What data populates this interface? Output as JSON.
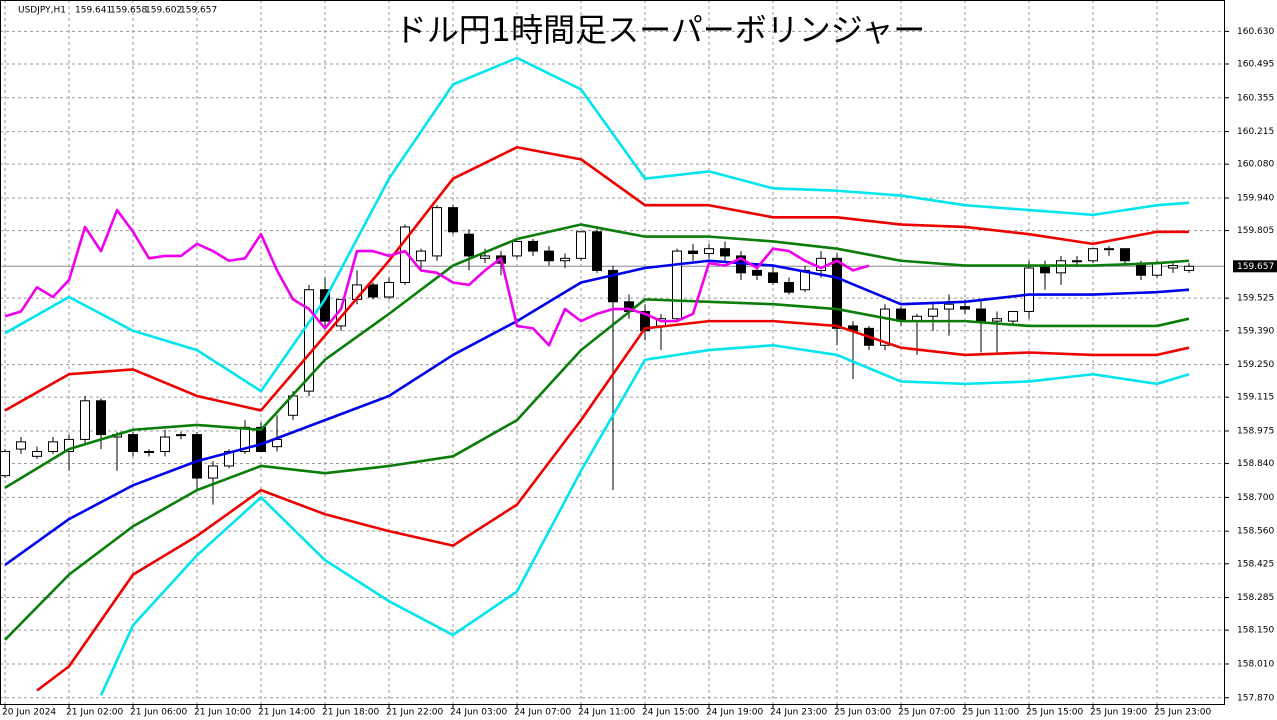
{
  "chart_data": {
    "type": "candlestick",
    "title": "ドル円1時間足スーパーボリンジャー",
    "symbol": "USDJPY,H1",
    "ohlc": [
      159.641,
      159.658,
      159.602,
      159.657
    ],
    "current_price": 159.657,
    "categories": [
      "20 Jun 2024",
      null,
      null,
      null,
      "21 Jun 02:00",
      null,
      null,
      null,
      "21 Jun 06:00",
      null,
      null,
      null,
      "21 Jun 10:00",
      null,
      null,
      null,
      "21 Jun 14:00",
      null,
      null,
      null,
      "21 Jun 18:00",
      null,
      null,
      null,
      "21 Jun 22:00",
      null,
      null,
      null,
      "24 Jun 03:00",
      null,
      null,
      null,
      "24 Jun 07:00",
      null,
      null,
      null,
      "24 Jun 11:00",
      null,
      null,
      null,
      "24 Jun 15:00",
      null,
      null,
      null,
      "24 Jun 19:00",
      null,
      null,
      null,
      "24 Jun 23:00",
      null,
      null,
      null,
      "25 Jun 03:00",
      null,
      null,
      null,
      "25 Jun 07:00",
      null,
      null,
      null,
      "25 Jun 11:00",
      null,
      null,
      null,
      "25 Jun 15:00",
      null,
      null,
      null,
      "25 Jun 19:00",
      null,
      null,
      null,
      "25 Jun 23:00",
      null,
      null
    ],
    "candles": {
      "open": [
        158.79,
        158.9,
        158.87,
        158.89,
        158.89,
        158.94,
        159.1,
        158.95,
        158.96,
        158.89,
        158.89,
        158.96,
        158.96,
        158.78,
        158.83,
        158.89,
        158.99,
        158.91,
        159.04,
        159.14,
        159.56,
        159.41,
        159.52,
        159.58,
        159.53,
        159.59,
        159.68,
        159.7,
        159.9,
        159.79,
        159.69,
        159.7,
        159.7,
        159.76,
        159.72,
        159.68,
        159.69,
        159.8,
        159.64,
        159.51,
        159.47,
        159.41,
        159.44,
        159.72,
        159.71,
        159.73,
        159.7,
        159.64,
        159.63,
        159.59,
        159.56,
        159.64,
        159.69,
        159.41,
        159.4,
        159.33,
        159.48,
        159.43,
        159.45,
        159.48,
        159.49,
        159.48,
        159.43,
        159.43,
        159.47,
        159.66,
        159.63,
        159.68,
        159.68,
        159.73,
        159.73,
        159.67,
        159.62,
        159.65,
        159.64
      ],
      "high": [
        158.9,
        158.95,
        158.91,
        158.95,
        158.96,
        159.12,
        159.11,
        158.97,
        158.97,
        158.9,
        158.98,
        158.97,
        158.97,
        158.85,
        158.9,
        159.02,
        159.01,
        159.04,
        159.14,
        159.58,
        159.61,
        159.52,
        159.64,
        159.59,
        159.61,
        159.83,
        159.73,
        159.91,
        159.91,
        159.81,
        159.73,
        159.72,
        159.76,
        159.77,
        159.74,
        159.71,
        159.8,
        159.81,
        159.66,
        159.54,
        159.5,
        159.46,
        159.73,
        159.75,
        159.75,
        159.76,
        159.72,
        159.67,
        159.66,
        159.61,
        159.66,
        159.72,
        159.71,
        159.43,
        159.41,
        159.5,
        159.49,
        159.46,
        159.51,
        159.54,
        159.52,
        159.52,
        159.47,
        159.47,
        159.68,
        159.68,
        159.7,
        159.7,
        159.73,
        159.74,
        159.73,
        159.68,
        159.68,
        159.67,
        159.67
      ],
      "low": [
        158.78,
        158.88,
        158.86,
        158.88,
        158.81,
        158.92,
        158.9,
        158.81,
        158.87,
        158.87,
        158.87,
        158.94,
        158.73,
        158.67,
        158.82,
        158.88,
        158.89,
        158.89,
        159.02,
        159.12,
        159.4,
        159.39,
        159.5,
        159.52,
        159.52,
        159.58,
        159.64,
        159.68,
        159.79,
        159.64,
        159.67,
        159.62,
        159.69,
        159.7,
        159.66,
        159.65,
        159.68,
        159.63,
        158.73,
        159.44,
        159.35,
        159.31,
        159.43,
        159.68,
        159.69,
        159.68,
        159.6,
        159.6,
        159.58,
        159.54,
        159.55,
        159.61,
        159.33,
        159.19,
        159.31,
        159.31,
        159.41,
        159.29,
        159.39,
        159.37,
        159.46,
        159.3,
        159.29,
        159.41,
        159.44,
        159.56,
        159.58,
        159.66,
        159.67,
        159.7,
        159.66,
        159.6,
        159.61,
        159.63,
        159.63
      ],
      "close": [
        158.89,
        158.93,
        158.89,
        158.93,
        158.94,
        159.1,
        158.96,
        158.96,
        158.89,
        158.89,
        158.95,
        158.96,
        158.78,
        158.83,
        158.89,
        158.99,
        158.89,
        158.94,
        159.12,
        159.56,
        159.43,
        159.52,
        159.58,
        159.53,
        159.59,
        159.82,
        159.72,
        159.9,
        159.8,
        159.7,
        159.7,
        159.67,
        159.76,
        159.72,
        159.68,
        159.69,
        159.8,
        159.64,
        159.51,
        159.47,
        159.39,
        159.44,
        159.72,
        159.71,
        159.73,
        159.7,
        159.63,
        159.62,
        159.59,
        159.55,
        159.64,
        159.69,
        159.4,
        159.39,
        159.33,
        159.48,
        159.43,
        159.45,
        159.48,
        159.5,
        159.48,
        159.43,
        159.44,
        159.47,
        159.65,
        159.63,
        159.68,
        159.68,
        159.73,
        159.73,
        159.68,
        159.62,
        159.67,
        159.66,
        159.657
      ]
    },
    "series": [
      {
        "color": "#00e5ee",
        "x": [
          0,
          4,
          8,
          12,
          16,
          20,
          24,
          28,
          32,
          36,
          40,
          44,
          48,
          52,
          56,
          60,
          64,
          68,
          72,
          74
        ],
        "values": [
          159.38,
          159.53,
          159.39,
          159.31,
          159.14,
          159.52,
          160.02,
          160.41,
          160.52,
          160.39,
          160.02,
          160.05,
          159.98,
          159.97,
          159.95,
          159.91,
          159.89,
          159.87,
          159.91,
          159.92
        ]
      },
      {
        "color": "#00e5ee",
        "x": [
          6,
          8,
          12,
          16,
          20,
          24,
          28,
          32,
          36,
          40,
          44,
          48,
          52,
          56,
          60,
          64,
          68,
          72,
          74
        ],
        "values": [
          157.88,
          158.17,
          158.46,
          158.7,
          158.44,
          158.27,
          158.13,
          158.31,
          158.81,
          159.27,
          159.31,
          159.33,
          159.29,
          159.18,
          159.17,
          159.18,
          159.21,
          159.17,
          159.21
        ]
      },
      {
        "color": "#ee0000",
        "x": [
          0,
          4,
          8,
          12,
          16,
          20,
          24,
          28,
          32,
          36,
          40,
          44,
          48,
          52,
          56,
          60,
          64,
          68,
          72,
          74
        ],
        "values": [
          159.06,
          159.21,
          159.23,
          159.12,
          159.06,
          159.37,
          159.68,
          160.02,
          160.15,
          160.1,
          159.91,
          159.91,
          159.86,
          159.86,
          159.83,
          159.82,
          159.79,
          159.75,
          159.8,
          159.8
        ]
      },
      {
        "color": "#ee0000",
        "x": [
          2,
          4,
          8,
          12,
          16,
          20,
          24,
          28,
          32,
          36,
          40,
          44,
          48,
          52,
          56,
          60,
          64,
          68,
          72,
          74
        ],
        "values": [
          157.9,
          158.0,
          158.38,
          158.54,
          158.73,
          158.63,
          158.56,
          158.5,
          158.67,
          159.02,
          159.4,
          159.43,
          159.43,
          159.41,
          159.32,
          159.29,
          159.3,
          159.29,
          159.29,
          159.32
        ]
      },
      {
        "color": "#0a7d0a",
        "x": [
          0,
          4,
          8,
          12,
          16,
          20,
          24,
          28,
          32,
          36,
          40,
          44,
          48,
          52,
          56,
          60,
          64,
          68,
          72,
          74
        ],
        "values": [
          158.74,
          158.9,
          158.98,
          159.0,
          158.98,
          159.27,
          159.46,
          159.66,
          159.77,
          159.83,
          159.78,
          159.78,
          159.76,
          159.73,
          159.68,
          159.66,
          159.66,
          159.66,
          159.67,
          159.68
        ]
      },
      {
        "color": "#0a7d0a",
        "x": [
          0,
          4,
          8,
          12,
          16,
          20,
          24,
          28,
          32,
          36,
          40,
          44,
          48,
          52,
          56,
          60,
          64,
          68,
          72,
          74
        ],
        "values": [
          158.11,
          158.38,
          158.58,
          158.73,
          158.83,
          158.8,
          158.83,
          158.87,
          159.02,
          159.31,
          159.52,
          159.51,
          159.5,
          159.48,
          159.43,
          159.43,
          159.41,
          159.41,
          159.41,
          159.44
        ]
      },
      {
        "color": "#0000ee",
        "x": [
          0,
          4,
          8,
          12,
          16,
          20,
          24,
          28,
          32,
          36,
          40,
          44,
          48,
          52,
          56,
          60,
          64,
          68,
          72,
          74
        ],
        "values": [
          158.42,
          158.61,
          158.75,
          158.85,
          158.92,
          159.02,
          159.12,
          159.29,
          159.43,
          159.59,
          159.65,
          159.68,
          159.66,
          159.61,
          159.5,
          159.51,
          159.54,
          159.54,
          159.55,
          159.56
        ]
      },
      {
        "color": "#ee00ee",
        "x": [
          0,
          1,
          2,
          3,
          4,
          5,
          6,
          7,
          8,
          9,
          10,
          11,
          12,
          13,
          14,
          15,
          16,
          17,
          18,
          19,
          20,
          21,
          22,
          23,
          24,
          25,
          26,
          27,
          28,
          29,
          30,
          31,
          32,
          33,
          34,
          35,
          36,
          37,
          38,
          39,
          40,
          41,
          42,
          43,
          44,
          45,
          46,
          47,
          48,
          49,
          50,
          51,
          52,
          53,
          54
        ],
        "values": [
          159.45,
          159.47,
          159.57,
          159.53,
          159.6,
          159.82,
          159.72,
          159.89,
          159.8,
          159.69,
          159.7,
          159.7,
          159.75,
          159.72,
          159.68,
          159.69,
          159.79,
          159.64,
          159.52,
          159.48,
          159.4,
          159.48,
          159.72,
          159.72,
          159.7,
          159.72,
          159.64,
          159.63,
          159.59,
          159.58,
          159.64,
          159.69,
          159.41,
          159.4,
          159.33,
          159.48,
          159.43,
          159.46,
          159.48,
          159.48,
          159.46,
          159.43,
          159.43,
          159.46,
          159.67,
          159.66,
          159.69,
          159.65,
          159.73,
          159.72,
          159.68,
          159.65,
          159.68,
          159.64,
          159.66
        ]
      }
    ],
    "ylim": [
      157.84,
      160.76
    ],
    "yticks": [
      {
        "value": 160.63,
        "label": "160.630"
      },
      160.495,
      160.355,
      160.215,
      {
        "value": 160.08,
        "label": "160.080"
      },
      {
        "value": 159.94,
        "label": "159.940"
      },
      159.805,
      159.525,
      {
        "value": 159.39,
        "label": "159.390"
      },
      {
        "value": 159.25,
        "label": "159.250"
      },
      159.115,
      158.975,
      {
        "value": 158.84,
        "label": "158.840"
      },
      {
        "value": 158.7,
        "label": "158.700"
      },
      {
        "value": 158.56,
        "label": "158.560"
      },
      158.425,
      158.285,
      {
        "value": 158.15,
        "label": "158.150"
      },
      {
        "value": 158.01,
        "label": "158.010"
      },
      {
        "value": 157.87,
        "label": "157.870"
      }
    ],
    "grid": true
  }
}
